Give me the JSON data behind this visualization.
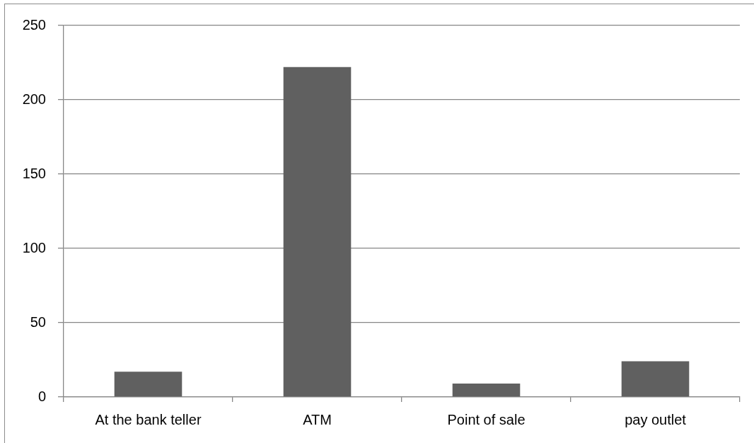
{
  "chart_data": {
    "type": "bar",
    "categories": [
      "At the bank teller",
      "ATM",
      "Point of sale",
      "pay outlet"
    ],
    "values": [
      17,
      222,
      9,
      24
    ],
    "color": "#606060",
    "ylim": [
      0,
      250
    ],
    "yticks": [
      0,
      50,
      100,
      150,
      200,
      250
    ],
    "grid": "y"
  }
}
